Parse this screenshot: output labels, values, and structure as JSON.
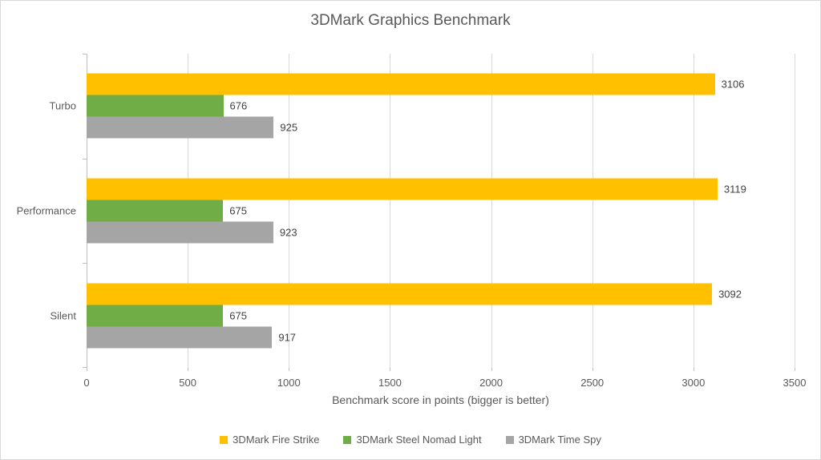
{
  "title": "3DMark Graphics Benchmark",
  "chart_data": {
    "type": "bar",
    "orientation": "horizontal",
    "title": "3DMark Graphics Benchmark",
    "categories": [
      "Turbo",
      "Performance",
      "Silent"
    ],
    "series": [
      {
        "name": "3DMark Fire Strike",
        "color": "#FFC000",
        "values": [
          3106,
          3119,
          3092
        ]
      },
      {
        "name": "3DMark Steel Nomad Light",
        "color": "#70AD47",
        "values": [
          676,
          675,
          675
        ]
      },
      {
        "name": "3DMark Time Spy",
        "color": "#A5A5A5",
        "values": [
          925,
          923,
          917
        ]
      }
    ],
    "xlabel": "Benchmark score in points (bigger is better)",
    "ylabel": "",
    "xlim": [
      0,
      3500
    ],
    "xticks": [
      0,
      500,
      1000,
      1500,
      2000,
      2500,
      3000,
      3500
    ],
    "grid": true,
    "data_labels": true,
    "legend_position": "bottom"
  },
  "style": {
    "gridline_color": "#d9d9d9",
    "axis_color": "#bfbfbf",
    "title_color": "#595959",
    "label_color": "#595959",
    "data_label_color": "#404040",
    "background": "#ffffff"
  }
}
